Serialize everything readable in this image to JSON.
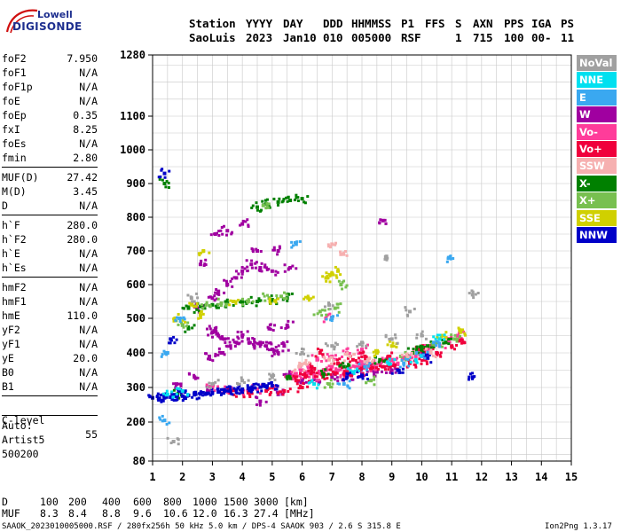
{
  "logo": {
    "line1": "Lowell",
    "line2": "DIGISONDE"
  },
  "header": {
    "labels": [
      "Station",
      "YYYY",
      "DAY",
      "DDD",
      "HHMMSS",
      "P1",
      "FFS",
      "S",
      "AXN",
      "PPS",
      "IGA",
      "PS"
    ],
    "values": [
      "SaoLuis",
      "2023",
      "Jan10",
      "010",
      "005000",
      "RSF",
      "",
      "1",
      "715",
      "100",
      "00-",
      "11"
    ]
  },
  "params": {
    "group1": [
      {
        "label": "foF2",
        "value": "7.950"
      },
      {
        "label": "foF1",
        "value": "N/A"
      },
      {
        "label": "foF1p",
        "value": "N/A"
      },
      {
        "label": "foE",
        "value": "N/A"
      },
      {
        "label": "foEp",
        "value": "0.35"
      },
      {
        "label": "fxI",
        "value": "8.25"
      },
      {
        "label": "foEs",
        "value": "N/A"
      },
      {
        "label": "fmin",
        "value": "2.80"
      }
    ],
    "group2": [
      {
        "label": "MUF(D)",
        "value": "27.42"
      },
      {
        "label": "M(D)",
        "value": "3.45"
      },
      {
        "label": "D",
        "value": "N/A"
      }
    ],
    "group3": [
      {
        "label": "h`F",
        "value": "280.0"
      },
      {
        "label": "h`F2",
        "value": "280.0"
      },
      {
        "label": "h`E",
        "value": "N/A"
      },
      {
        "label": "h`Es",
        "value": "N/A"
      }
    ],
    "group4": [
      {
        "label": "hmF2",
        "value": "N/A"
      },
      {
        "label": "hmF1",
        "value": "N/A"
      },
      {
        "label": "hmE",
        "value": "110.0"
      },
      {
        "label": "yF2",
        "value": "N/A"
      },
      {
        "label": "yF1",
        "value": "N/A"
      },
      {
        "label": "yE",
        "value": "20.0"
      },
      {
        "label": "B0",
        "value": "N/A"
      },
      {
        "label": "B1",
        "value": "N/A"
      }
    ],
    "clevel": {
      "label": "C-level",
      "value": "55"
    },
    "auto": [
      "Auto:",
      "Artist5",
      "500200"
    ]
  },
  "legend": [
    {
      "label": "NoVal",
      "color": "#a0a0a0"
    },
    {
      "label": "NNE",
      "color": "#00e0f0"
    },
    {
      "label": "E",
      "color": "#3aa8f0"
    },
    {
      "label": "W",
      "color": "#a000a0"
    },
    {
      "label": "Vo-",
      "color": "#ff3c9a"
    },
    {
      "label": "Vo+",
      "color": "#f0003c"
    },
    {
      "label": "SSW",
      "color": "#f6b0b0"
    },
    {
      "label": "X-",
      "color": "#008000"
    },
    {
      "label": "X+",
      "color": "#78c050"
    },
    {
      "label": "SSE",
      "color": "#d0d000"
    },
    {
      "label": "NNW",
      "color": "#0000c8"
    }
  ],
  "footer": {
    "d_label": "D",
    "d_values": [
      "100",
      "200",
      "400",
      "600",
      "800",
      "1000",
      "1500",
      "3000"
    ],
    "d_unit": "[km]",
    "muf_label": "MUF",
    "muf_values": [
      "8.3",
      "8.4",
      "8.8",
      "9.6",
      "10.6",
      "12.0",
      "16.3",
      "27.4"
    ],
    "muf_unit": "[MHz]",
    "file_line": "SAAOK_2023010005000.RSF / 280fx256h 50 kHz 5.0 km / DPS-4 SAAOK 903 / 2.6 S 315.8 E",
    "version": "Ion2Png 1.3.17"
  },
  "chart_data": {
    "type": "scatter",
    "title": "",
    "xlabel": "",
    "ylabel": "",
    "xlim": [
      1,
      15
    ],
    "ylim": [
      80,
      1280
    ],
    "x_ticks": [
      1,
      2,
      3,
      4,
      5,
      6,
      7,
      8,
      9,
      10,
      11,
      12,
      13,
      14,
      15
    ],
    "y_ticks": [
      80,
      200,
      300,
      400,
      500,
      600,
      700,
      800,
      900,
      1000,
      1100,
      1280
    ],
    "grid": true,
    "series": [
      {
        "name": "W",
        "color": "#a000a0",
        "points": [
          [
            3.0,
            460
          ],
          [
            3.1,
            470
          ],
          [
            3.2,
            450
          ],
          [
            3.4,
            440
          ],
          [
            3.6,
            420
          ],
          [
            3.8,
            430
          ],
          [
            4.0,
            450
          ],
          [
            4.2,
            440
          ],
          [
            4.4,
            420
          ],
          [
            4.6,
            430
          ],
          [
            4.8,
            420
          ],
          [
            5.0,
            410
          ],
          [
            5.2,
            400
          ],
          [
            5.4,
            420
          ],
          [
            3.0,
            560
          ],
          [
            3.2,
            580
          ],
          [
            3.5,
            600
          ],
          [
            3.8,
            620
          ],
          [
            4.0,
            640
          ],
          [
            4.3,
            660
          ],
          [
            4.6,
            650
          ],
          [
            5.0,
            640
          ],
          [
            5.2,
            700
          ],
          [
            3.1,
            750
          ],
          [
            3.5,
            760
          ],
          [
            4.0,
            780
          ],
          [
            4.5,
            700
          ],
          [
            2.6,
            660
          ],
          [
            2.9,
            390
          ],
          [
            3.3,
            400
          ],
          [
            4.9,
            470
          ],
          [
            5.5,
            480
          ],
          [
            5.6,
            340
          ],
          [
            6.0,
            320
          ],
          [
            6.5,
            320
          ],
          [
            7.0,
            330
          ],
          [
            7.5,
            330
          ],
          [
            8.0,
            340
          ],
          [
            8.5,
            345
          ],
          [
            9.0,
            350
          ],
          [
            1.8,
            310
          ],
          [
            2.4,
            330
          ],
          [
            3.0,
            300
          ],
          [
            4.6,
            260
          ],
          [
            5.2,
            280
          ],
          [
            8.7,
            790
          ],
          [
            5.6,
            650
          ],
          [
            2.5,
            530
          ]
        ]
      },
      {
        "name": "Vo-",
        "color": "#ff3c9a",
        "points": [
          [
            5.6,
            330
          ],
          [
            5.8,
            340
          ],
          [
            6.0,
            350
          ],
          [
            6.2,
            345
          ],
          [
            6.4,
            330
          ],
          [
            6.6,
            340
          ],
          [
            6.8,
            350
          ],
          [
            7.0,
            360
          ],
          [
            7.2,
            350
          ],
          [
            7.4,
            340
          ],
          [
            7.6,
            355
          ],
          [
            7.8,
            360
          ],
          [
            8.0,
            365
          ],
          [
            8.2,
            370
          ],
          [
            8.4,
            360
          ],
          [
            8.6,
            370
          ],
          [
            8.8,
            375
          ],
          [
            9.0,
            380
          ],
          [
            9.2,
            370
          ],
          [
            9.5,
            385
          ],
          [
            9.8,
            390
          ],
          [
            10.0,
            395
          ],
          [
            10.3,
            410
          ],
          [
            10.6,
            420
          ],
          [
            10.9,
            440
          ],
          [
            11.2,
            450
          ],
          [
            6.5,
            380
          ],
          [
            7.0,
            390
          ],
          [
            7.5,
            400
          ],
          [
            8.0,
            410
          ],
          [
            6.8,
            500
          ],
          [
            3.0,
            300
          ],
          [
            3.5,
            295
          ],
          [
            4.0,
            290
          ],
          [
            4.5,
            295
          ],
          [
            5.0,
            300
          ]
        ]
      },
      {
        "name": "Vo+",
        "color": "#f0003c",
        "points": [
          [
            5.8,
            320
          ],
          [
            6.1,
            330
          ],
          [
            6.3,
            340
          ],
          [
            6.7,
            330
          ],
          [
            7.1,
            340
          ],
          [
            7.5,
            345
          ],
          [
            7.9,
            350
          ],
          [
            8.3,
            355
          ],
          [
            8.7,
            360
          ],
          [
            9.1,
            365
          ],
          [
            9.6,
            370
          ],
          [
            10.1,
            380
          ],
          [
            10.5,
            400
          ],
          [
            11.0,
            420
          ],
          [
            11.4,
            430
          ],
          [
            7.2,
            370
          ],
          [
            7.7,
            380
          ],
          [
            8.1,
            390
          ],
          [
            8.9,
            390
          ],
          [
            6.3,
            360
          ],
          [
            6.0,
            300
          ],
          [
            5.4,
            290
          ],
          [
            4.8,
            290
          ],
          [
            4.2,
            285
          ],
          [
            3.6,
            285
          ],
          [
            6.6,
            400
          ],
          [
            9.9,
            410
          ]
        ]
      },
      {
        "name": "X-",
        "color": "#008000",
        "points": [
          [
            2.2,
            530
          ],
          [
            2.6,
            535
          ],
          [
            3.0,
            540
          ],
          [
            3.5,
            545
          ],
          [
            4.0,
            548
          ],
          [
            4.5,
            550
          ],
          [
            5.0,
            555
          ],
          [
            5.5,
            560
          ],
          [
            4.5,
            830
          ],
          [
            4.8,
            840
          ],
          [
            5.2,
            845
          ],
          [
            5.6,
            850
          ],
          [
            6.0,
            855
          ],
          [
            2.2,
            470
          ],
          [
            9.7,
            400
          ],
          [
            10.0,
            410
          ],
          [
            10.2,
            420
          ],
          [
            10.8,
            430
          ],
          [
            5.5,
            330
          ],
          [
            6.7,
            340
          ],
          [
            7.4,
            360
          ],
          [
            8.6,
            380
          ],
          [
            1.8,
            280
          ],
          [
            1.4,
            900
          ]
        ]
      },
      {
        "name": "X+",
        "color": "#78c050",
        "points": [
          [
            2.8,
            540
          ],
          [
            3.3,
            545
          ],
          [
            4.2,
            550
          ],
          [
            4.9,
            560
          ],
          [
            5.3,
            565
          ],
          [
            6.6,
            520
          ],
          [
            7.1,
            530
          ],
          [
            7.3,
            600
          ],
          [
            2.0,
            480
          ],
          [
            9.3,
            390
          ],
          [
            10.5,
            430
          ],
          [
            11.1,
            440
          ],
          [
            6.9,
            310
          ],
          [
            8.3,
            320
          ],
          [
            4.7,
            835
          ]
        ]
      },
      {
        "name": "SSE",
        "color": "#d0d000",
        "points": [
          [
            2.3,
            540
          ],
          [
            3.7,
            550
          ],
          [
            5.1,
            552
          ],
          [
            6.8,
            620
          ],
          [
            7.0,
            630
          ],
          [
            7.2,
            640
          ],
          [
            1.9,
            500
          ],
          [
            2.7,
            700
          ],
          [
            6.2,
            560
          ],
          [
            10.7,
            450
          ],
          [
            11.3,
            460
          ],
          [
            8.5,
            400
          ],
          [
            9.0,
            420
          ],
          [
            2.6,
            510
          ]
        ]
      },
      {
        "name": "NNW",
        "color": "#0000c8",
        "points": [
          [
            1.0,
            270
          ],
          [
            1.2,
            268
          ],
          [
            1.4,
            270
          ],
          [
            1.6,
            272
          ],
          [
            1.8,
            274
          ],
          [
            2.0,
            275
          ],
          [
            2.2,
            277
          ],
          [
            2.4,
            279
          ],
          [
            2.6,
            281
          ],
          [
            2.8,
            283
          ],
          [
            3.0,
            285
          ],
          [
            3.2,
            287
          ],
          [
            3.4,
            289
          ],
          [
            3.6,
            291
          ],
          [
            3.8,
            293
          ],
          [
            4.0,
            295
          ],
          [
            4.2,
            297
          ],
          [
            4.4,
            299
          ],
          [
            4.6,
            301
          ],
          [
            4.8,
            303
          ],
          [
            5.0,
            305
          ],
          [
            1.4,
            930
          ],
          [
            7.5,
            330
          ],
          [
            8.0,
            335
          ],
          [
            9.2,
            350
          ],
          [
            11.7,
            330
          ],
          [
            10.2,
            385
          ],
          [
            1.9,
            290
          ],
          [
            1.6,
            440
          ]
        ]
      },
      {
        "name": "E",
        "color": "#3aa8f0",
        "points": [
          [
            1.4,
            205
          ],
          [
            1.9,
            500
          ],
          [
            7.0,
            500
          ],
          [
            8.1,
            360
          ],
          [
            9.4,
            370
          ],
          [
            10.0,
            390
          ],
          [
            10.9,
            680
          ],
          [
            1.5,
            400
          ],
          [
            5.8,
            720
          ],
          [
            7.4,
            310
          ],
          [
            10.4,
            430
          ]
        ]
      },
      {
        "name": "NNE",
        "color": "#00e0f0",
        "points": [
          [
            1.5,
            280
          ],
          [
            2.0,
            290
          ],
          [
            7.7,
            345
          ],
          [
            8.9,
            370
          ],
          [
            10.6,
            440
          ],
          [
            9.8,
            380
          ],
          [
            6.4,
            310
          ]
        ]
      },
      {
        "name": "SSW",
        "color": "#f6b0b0",
        "points": [
          [
            6.1,
            370
          ],
          [
            6.9,
            380
          ],
          [
            7.6,
            390
          ],
          [
            8.2,
            380
          ],
          [
            9.5,
            395
          ],
          [
            10.3,
            400
          ],
          [
            5.9,
            360
          ],
          [
            7.3,
            690
          ],
          [
            7.0,
            720
          ]
        ]
      },
      {
        "name": "NoVal",
        "color": "#a0a0a0",
        "points": [
          [
            1.7,
            140
          ],
          [
            3.0,
            310
          ],
          [
            4.0,
            320
          ],
          [
            5.0,
            330
          ],
          [
            6.0,
            400
          ],
          [
            7.0,
            420
          ],
          [
            8.0,
            430
          ],
          [
            9.0,
            440
          ],
          [
            10.0,
            450
          ],
          [
            11.7,
            570
          ],
          [
            9.6,
            520
          ],
          [
            8.8,
            680
          ],
          [
            6.9,
            540
          ],
          [
            2.3,
            560
          ]
        ]
      }
    ]
  }
}
